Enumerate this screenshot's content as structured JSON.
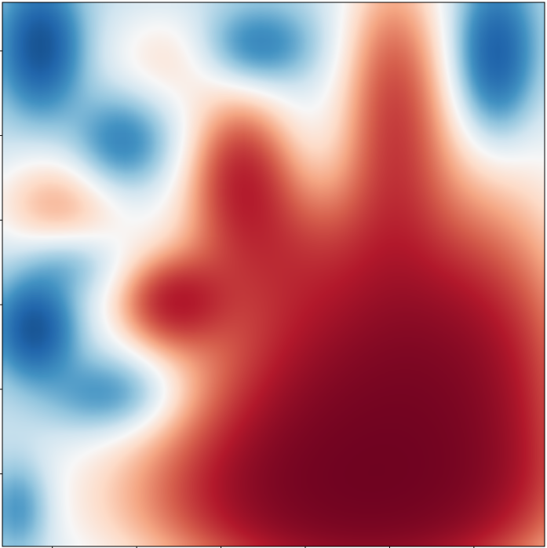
{
  "chart_data": {
    "type": "heatmap",
    "title": "",
    "xlabel": "",
    "ylabel": "",
    "colormap": "RdBu_r",
    "value_range": [
      -1,
      1
    ],
    "grid_resolution": [
      64,
      64
    ],
    "interpolation": "bilinear",
    "x_tick_count": 7,
    "y_tick_count": 7,
    "tick_labels_shown": false,
    "colors": {
      "strong_negative": "#2166ac",
      "neutral": "#f7f7f7",
      "strong_positive": "#67001f",
      "frame": "#000000"
    }
  }
}
